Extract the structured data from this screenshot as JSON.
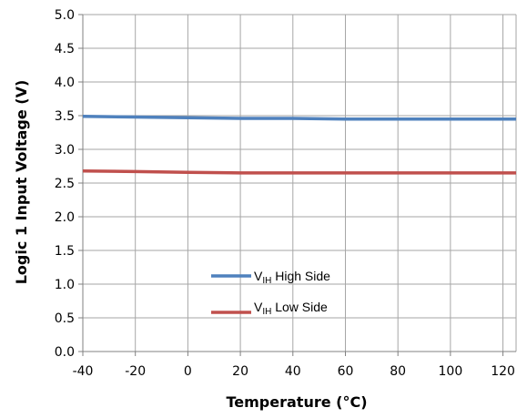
{
  "chart_data": {
    "type": "line",
    "xlabel": "Temperature (°C)",
    "ylabel": "Logic 1 Input Voltage (V)",
    "xlim": [
      -40,
      125
    ],
    "ylim": [
      0,
      5
    ],
    "x_ticks": [
      -40,
      -20,
      0,
      20,
      40,
      60,
      80,
      100,
      120
    ],
    "x_tick_labels": [
      "-40",
      "-20",
      "0",
      "20",
      "40",
      "60",
      "80",
      "100",
      "120"
    ],
    "y_ticks": [
      0,
      0.5,
      1,
      1.5,
      2,
      2.5,
      3,
      3.5,
      4,
      4.5,
      5
    ],
    "y_tick_labels": [
      "0.0",
      "0.5",
      "1.0",
      "1.5",
      "2.0",
      "2.5",
      "3.0",
      "3.5",
      "4.0",
      "4.5",
      "5.0"
    ],
    "grid": true,
    "legend_position": "center-bottom",
    "series": [
      {
        "name": "VIH High Side",
        "legend_main": "V",
        "legend_sub": "IH",
        "legend_rest": " High Side",
        "color": "#4f81bd",
        "x": [
          -40,
          -20,
          0,
          20,
          40,
          60,
          80,
          100,
          125
        ],
        "y": [
          3.49,
          3.48,
          3.47,
          3.46,
          3.46,
          3.45,
          3.45,
          3.45,
          3.45
        ]
      },
      {
        "name": "VIH Low Side",
        "legend_main": "V",
        "legend_sub": "IH",
        "legend_rest": " Low Side",
        "color": "#c0504d",
        "x": [
          -40,
          -20,
          0,
          20,
          40,
          60,
          80,
          100,
          125
        ],
        "y": [
          2.68,
          2.67,
          2.66,
          2.65,
          2.65,
          2.65,
          2.65,
          2.65,
          2.65
        ]
      }
    ]
  }
}
